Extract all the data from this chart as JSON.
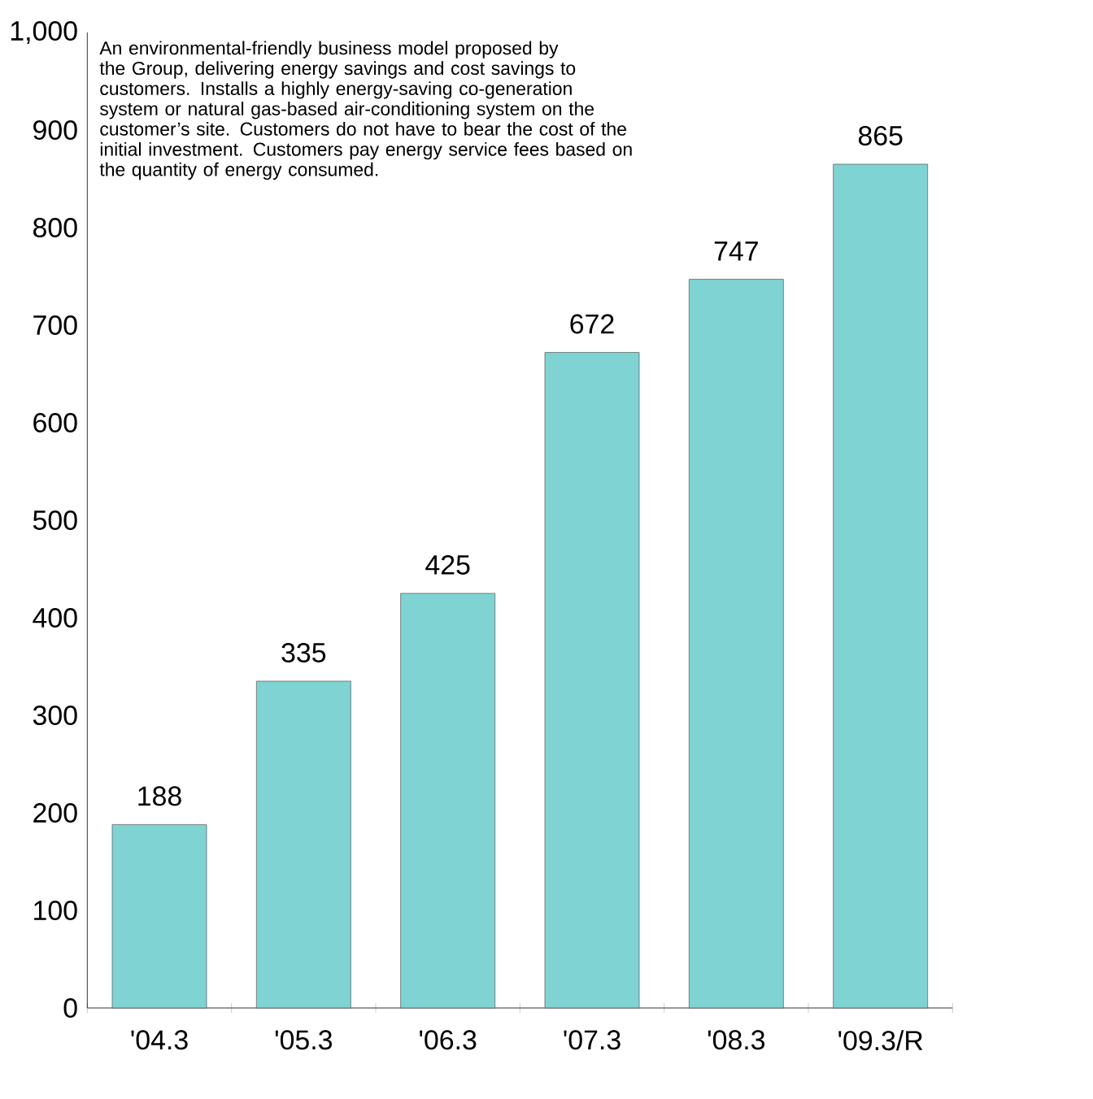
{
  "chart_data": {
    "type": "bar",
    "categories": [
      "'04.3",
      "'05.3",
      "'06.3",
      "'07.3",
      "'08.3",
      "'09.3/R"
    ],
    "values": [
      188,
      335,
      425,
      672,
      747,
      865
    ],
    "color": "#7fd3d3",
    "ylim": [
      0,
      1000
    ],
    "yticks": [
      0,
      100,
      200,
      300,
      400,
      500,
      600,
      700,
      800,
      900,
      {
        "value": 1000,
        "label": "1,000"
      }
    ],
    "data_labels": true,
    "grid": false,
    "annotations": [
      "An environmental-friendly business model proposed by the Group, delivering energy savings and cost savings to customers. Installs a highly energy-saving co-generation system or natural gas-based air-conditioning system on the customer’s site. Customers do not have to bear the cost of the initial investment. Customers pay energy service fees based on the quantity of energy consumed."
    ]
  }
}
